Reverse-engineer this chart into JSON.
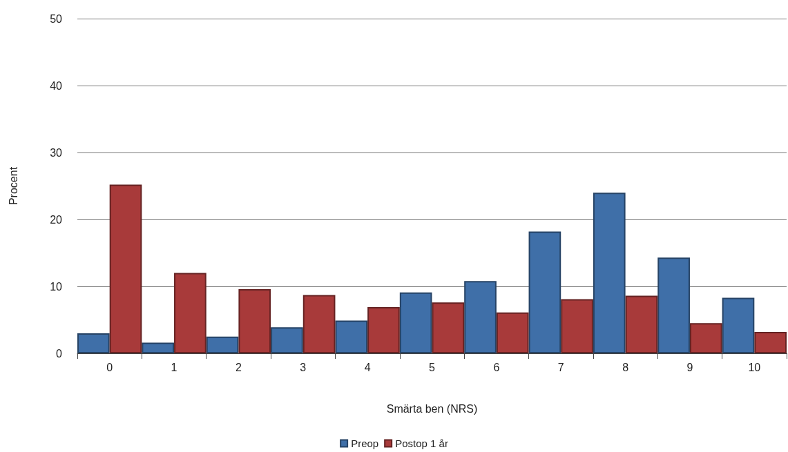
{
  "chart_data": {
    "type": "bar",
    "xlabel": "Smärta ben (NRS)",
    "ylabel": "Procent",
    "categories": [
      "0",
      "1",
      "2",
      "3",
      "4",
      "5",
      "6",
      "7",
      "8",
      "9",
      "10"
    ],
    "series": [
      {
        "name": "Preop",
        "color": "#3f6fa8",
        "values": [
          3.0,
          1.6,
          2.5,
          3.9,
          4.9,
          9.1,
          10.8,
          18.2,
          24.0,
          14.3,
          8.3
        ]
      },
      {
        "name": "Postop 1 år",
        "color": "#a83a3a",
        "values": [
          25.2,
          12.0,
          9.6,
          8.7,
          6.9,
          7.6,
          6.1,
          8.1,
          8.6,
          4.5,
          3.2
        ]
      }
    ],
    "ylim": [
      0,
      50
    ],
    "yticks": [
      0,
      10,
      20,
      30,
      40,
      50
    ],
    "grid": "y",
    "legend": "bottom"
  }
}
